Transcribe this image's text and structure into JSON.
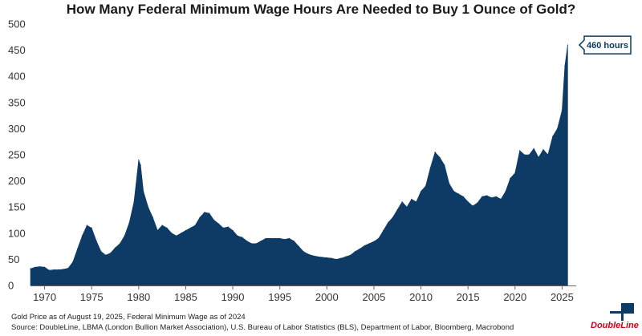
{
  "chart_data": {
    "type": "area",
    "title": "How Many Federal Minimum Wage Hours Are Needed to Buy 1 Ounce of Gold?",
    "xlabel": "",
    "ylabel": "",
    "xlim": [
      1968.5,
      2026.5
    ],
    "ylim": [
      0,
      500
    ],
    "x_ticks": [
      1970,
      1975,
      1980,
      1985,
      1990,
      1995,
      2000,
      2005,
      2010,
      2015,
      2020,
      2025
    ],
    "y_ticks": [
      0,
      50,
      100,
      150,
      200,
      250,
      300,
      350,
      400,
      450,
      500
    ],
    "grid": false,
    "color": "#0d3b66",
    "annotation": "460 hours",
    "annotation_value": 460,
    "x": [
      1968.5,
      1969.0,
      1969.5,
      1970.0,
      1970.5,
      1971.0,
      1971.5,
      1972.0,
      1972.5,
      1973.0,
      1973.5,
      1974.0,
      1974.5,
      1975.0,
      1975.5,
      1976.0,
      1976.5,
      1977.0,
      1977.5,
      1978.0,
      1978.5,
      1979.0,
      1979.5,
      1980.0,
      1980.2,
      1980.5,
      1981.0,
      1981.5,
      1982.0,
      1982.5,
      1983.0,
      1983.5,
      1984.0,
      1984.5,
      1985.0,
      1985.5,
      1986.0,
      1986.5,
      1987.0,
      1987.5,
      1988.0,
      1988.5,
      1989.0,
      1989.5,
      1990.0,
      1990.5,
      1991.0,
      1991.5,
      1992.0,
      1992.5,
      1993.0,
      1993.5,
      1994.0,
      1994.5,
      1995.0,
      1995.5,
      1996.0,
      1996.5,
      1997.0,
      1997.5,
      1998.0,
      1998.5,
      1999.0,
      1999.5,
      2000.0,
      2000.5,
      2001.0,
      2001.5,
      2002.0,
      2002.5,
      2003.0,
      2003.5,
      2004.0,
      2004.5,
      2005.0,
      2005.5,
      2006.0,
      2006.5,
      2007.0,
      2007.5,
      2008.0,
      2008.5,
      2009.0,
      2009.5,
      2010.0,
      2010.5,
      2011.0,
      2011.5,
      2012.0,
      2012.5,
      2013.0,
      2013.5,
      2014.0,
      2014.5,
      2015.0,
      2015.5,
      2016.0,
      2016.5,
      2017.0,
      2017.5,
      2018.0,
      2018.5,
      2019.0,
      2019.5,
      2020.0,
      2020.5,
      2021.0,
      2021.5,
      2022.0,
      2022.5,
      2023.0,
      2023.5,
      2024.0,
      2024.5,
      2025.0,
      2025.3,
      2025.6
    ],
    "values": [
      32,
      35,
      36,
      35,
      29,
      30,
      30,
      31,
      33,
      45,
      70,
      95,
      115,
      110,
      85,
      65,
      58,
      62,
      72,
      80,
      95,
      120,
      160,
      240,
      230,
      180,
      150,
      130,
      105,
      115,
      110,
      100,
      95,
      100,
      105,
      110,
      115,
      130,
      140,
      138,
      125,
      118,
      110,
      112,
      105,
      95,
      92,
      85,
      80,
      80,
      85,
      90,
      90,
      90,
      90,
      88,
      90,
      85,
      75,
      65,
      60,
      57,
      55,
      54,
      53,
      52,
      50,
      52,
      55,
      58,
      65,
      70,
      76,
      80,
      84,
      90,
      105,
      120,
      130,
      145,
      160,
      150,
      165,
      160,
      180,
      190,
      225,
      255,
      245,
      230,
      195,
      180,
      175,
      170,
      160,
      152,
      158,
      170,
      172,
      168,
      170,
      165,
      180,
      205,
      215,
      258,
      250,
      250,
      262,
      245,
      260,
      250,
      285,
      300,
      335,
      420,
      460
    ]
  },
  "footnote": {
    "line1": "Gold Price as of August 19, 2025, Federal Minimum Wage as of 2024",
    "line2": "Source: DoubleLine, LBMA (London Bullion Market Association), U.S. Bureau of Labor Statistics (BLS), Department of Labor, Bloomberg, Macrobond"
  },
  "logo": {
    "text": "DoubleLine"
  }
}
